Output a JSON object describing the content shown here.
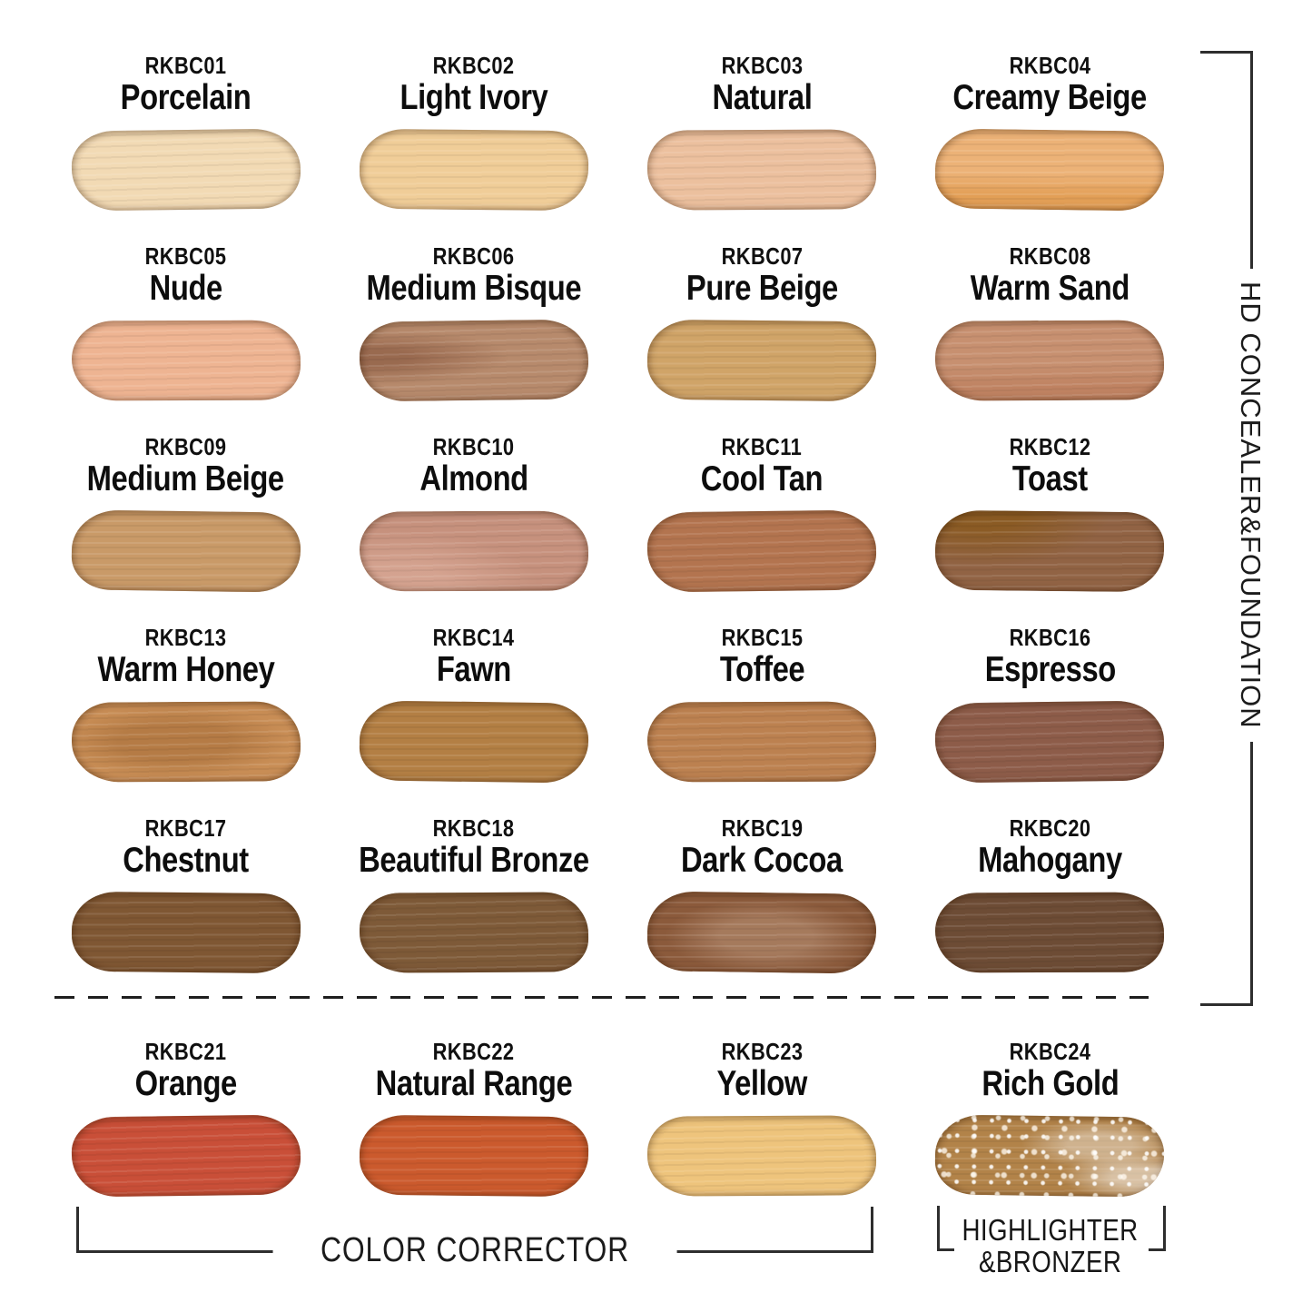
{
  "groups": {
    "right_label": "HD CONCEALER&FOUNDATION",
    "bottom_left_label": "COLOR CORRECTOR",
    "bottom_right_label_line1": "HIGHLIGHTER",
    "bottom_right_label_line2": "&BRONZER"
  },
  "colors": {
    "text": "#101010",
    "bracket_line": "#2e2e2e",
    "divider_dash": "#1e1e1e",
    "background": "#ffffff"
  },
  "shades": [
    {
      "code": "RKBC01",
      "name": "Porcelain",
      "color": "#f2dab4"
    },
    {
      "code": "RKBC02",
      "name": "Light Ivory",
      "color": "#f0cd98"
    },
    {
      "code": "RKBC03",
      "name": "Natural",
      "color": "#ecc09e"
    },
    {
      "code": "RKBC04",
      "name": "Creamy Beige",
      "color": "#ecb277",
      "accent": "#e09a4e",
      "accent_pos": "bottom"
    },
    {
      "code": "RKBC05",
      "name": "Nude",
      "color": "#eeb492"
    },
    {
      "code": "RKBC06",
      "name": "Medium Bisque",
      "color": "#b78a6c",
      "accent": "#96664c",
      "accent_pos": "left"
    },
    {
      "code": "RKBC07",
      "name": "Pure Beige",
      "color": "#d0a468"
    },
    {
      "code": "RKBC08",
      "name": "Warm Sand",
      "color": "#c79070",
      "accent": "#bd7f5e",
      "accent_pos": "bottom"
    },
    {
      "code": "RKBC09",
      "name": "Medium Beige",
      "color": "#c99a68"
    },
    {
      "code": "RKBC10",
      "name": "Almond",
      "color": "#c6917d",
      "accent": "#d8a794",
      "accent_pos": "bottom-left-light"
    },
    {
      "code": "RKBC11",
      "name": "Cool Tan",
      "color": "#b3744f"
    },
    {
      "code": "RKBC12",
      "name": "Toast",
      "color": "#916344",
      "accent": "#8a5a20",
      "accent_pos": "top-left"
    },
    {
      "code": "RKBC13",
      "name": "Warm Honey",
      "color": "#c88d55",
      "accent": "#a86f3a",
      "accent_pos": "mid"
    },
    {
      "code": "RKBC14",
      "name": "Fawn",
      "color": "#b37f44"
    },
    {
      "code": "RKBC15",
      "name": "Toffee",
      "color": "#bc8150"
    },
    {
      "code": "RKBC16",
      "name": "Espresso",
      "color": "#8d5c49"
    },
    {
      "code": "RKBC17",
      "name": "Chestnut",
      "color": "#7f5733"
    },
    {
      "code": "RKBC18",
      "name": "Beautiful Bronze",
      "color": "#7e5a38"
    },
    {
      "code": "RKBC19",
      "name": "Dark Cocoa",
      "color": "#8b5a3b",
      "accent": "#a87d60",
      "accent_pos": "center-light"
    },
    {
      "code": "RKBC20",
      "name": "Mahogany",
      "color": "#6d4c35"
    },
    {
      "code": "RKBC21",
      "name": "Orange",
      "color": "#c94f38"
    },
    {
      "code": "RKBC22",
      "name": "Natural Range",
      "color": "#cb5a2d"
    },
    {
      "code": "RKBC23",
      "name": "Yellow",
      "color": "#eec47c"
    },
    {
      "code": "RKBC24",
      "name": "Rich Gold",
      "color": "#b28349",
      "sparkle": true
    }
  ]
}
